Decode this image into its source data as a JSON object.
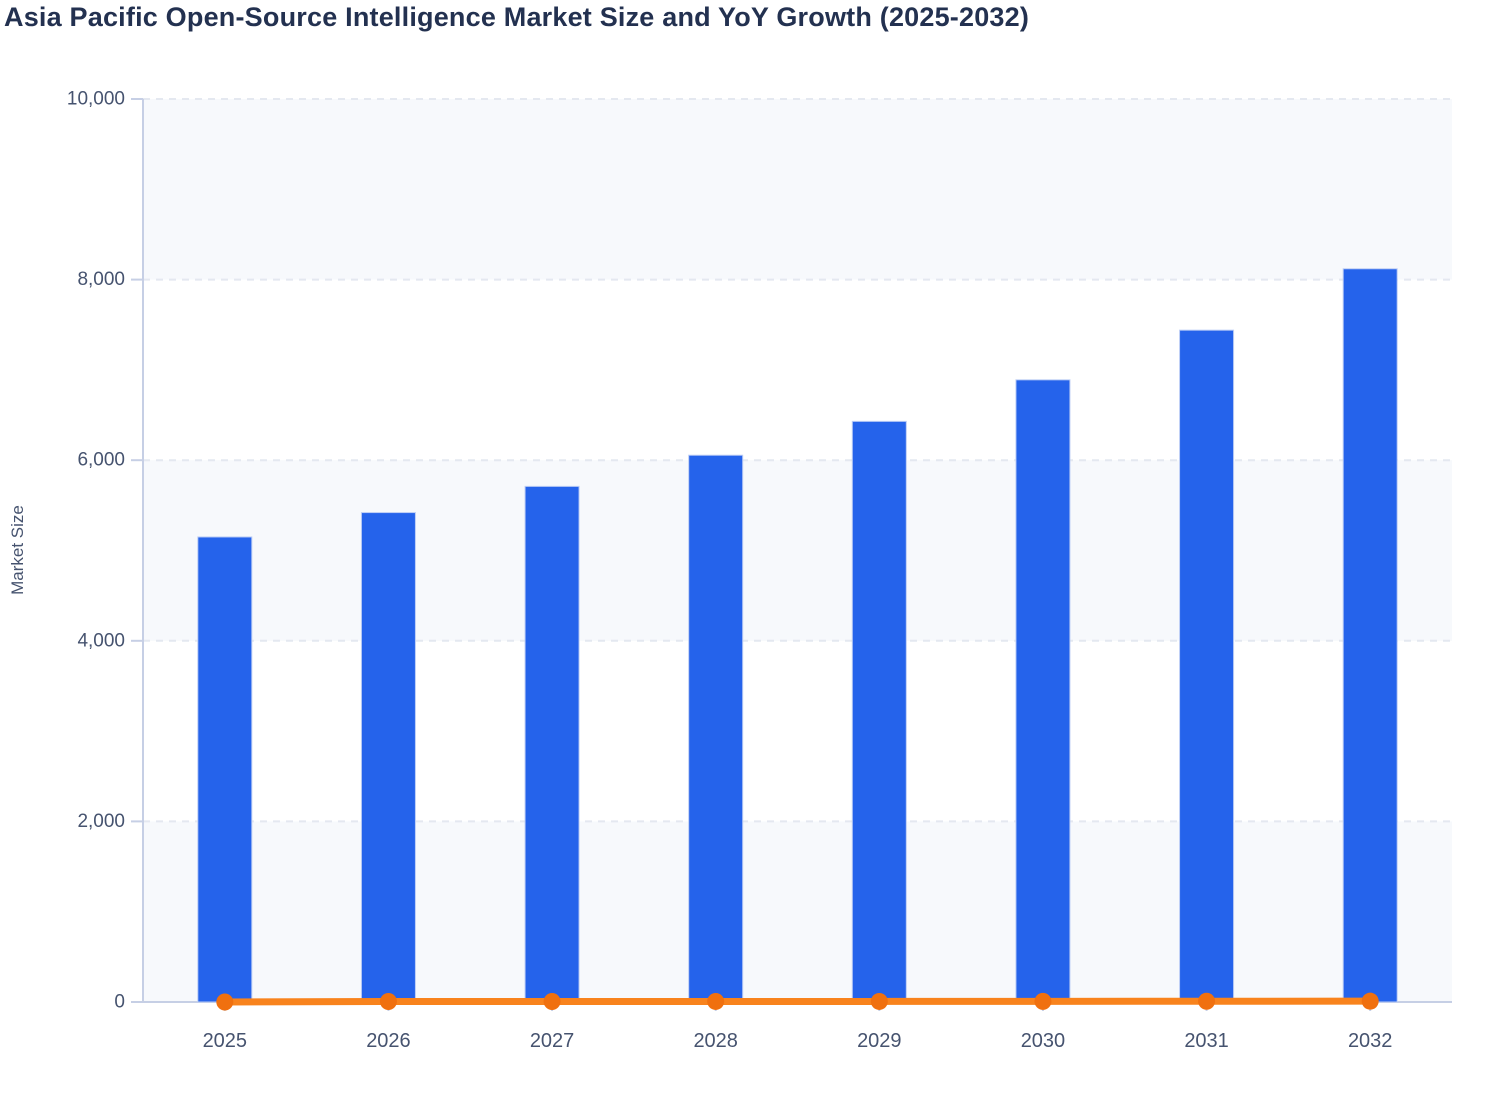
{
  "chart_data": {
    "type": "combo",
    "title": "Asia Pacific Open-Source Intelligence Market Size and YoY Growth (2025-2032)",
    "ylabel": "Market Size",
    "xlabel": "",
    "categories": [
      "2025",
      "2026",
      "2027",
      "2028",
      "2029",
      "2030",
      "2031",
      "2032"
    ],
    "series": [
      {
        "name": "Market Size",
        "type": "bar",
        "values": [
          5150,
          5420,
          5710,
          6055,
          6430,
          6890,
          7440,
          8120
        ]
      },
      {
        "name": "YoY Growth",
        "type": "line",
        "values": [
          0,
          5.2,
          5.4,
          6.0,
          6.2,
          7.2,
          8.0,
          9.1
        ],
        "note": "plotted on the same 0-10000 axis, so the line renders flat along the zero baseline with a marker at every year"
      }
    ],
    "ylim": [
      0,
      10000
    ],
    "y_ticks": [
      {
        "value": 0,
        "label": "0"
      },
      {
        "value": 2000,
        "label": "2,000"
      },
      {
        "value": 4000,
        "label": "4,000"
      },
      {
        "value": 6000,
        "label": "6,000"
      },
      {
        "value": 8000,
        "label": "8,000"
      },
      {
        "value": 10000,
        "label": "10,000"
      }
    ],
    "grid": "dashed horizontal gridlines, alternating shaded horizontal bands",
    "legend": "none",
    "colors": {
      "bar": "#2563EB",
      "bar_edge": "#BCCDF5",
      "line": "#F8831D",
      "marker": "#F0700F",
      "band": "#F7F9FC",
      "gridline": "#E4E8F0",
      "axis": "#C6CFE5",
      "tick_text": "#46536F",
      "title_text": "#233150"
    }
  }
}
